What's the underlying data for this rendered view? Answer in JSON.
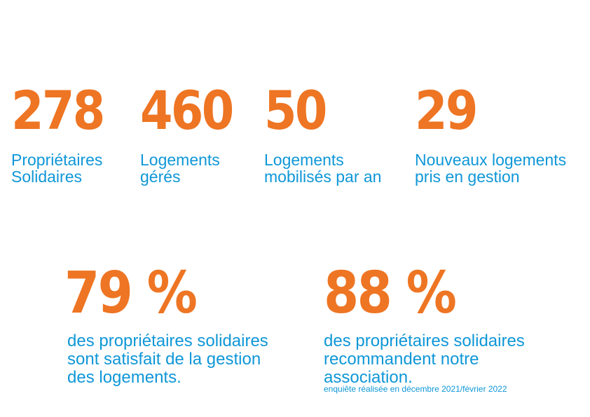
{
  "stats": [
    {
      "value": "278",
      "label": "Propriétaires\nSolidaires"
    },
    {
      "value": "460",
      "label": "Logements\ngérés"
    },
    {
      "value": "50",
      "label": "Logements\nmobilisés par an"
    },
    {
      "value": "29",
      "label": "Nouveaux logements\npris en gestion"
    }
  ],
  "highlights": [
    {
      "value": "79 %",
      "label": "des propriétaires solidaires\nsont satisfait de la gestion\ndes logements."
    },
    {
      "value": "88 %",
      "label": "des propriétaires solidaires\nrecommandent notre\nassociation."
    }
  ],
  "survey_note": "enquiête réalisée en décembre 2021/février 2022",
  "colors": {
    "accent": "#ee7523",
    "text": "#0f97d7",
    "background": "#ffffff"
  }
}
